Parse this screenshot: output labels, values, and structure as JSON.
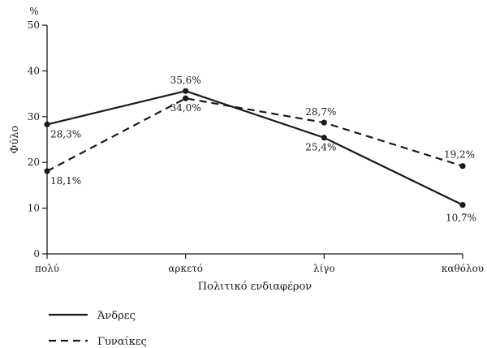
{
  "chart_data": {
    "type": "line",
    "categories": [
      "πολύ",
      "αρκετό",
      "λίγο",
      "καθόλου"
    ],
    "series": [
      {
        "name": "Άνδρες",
        "values": [
          28.3,
          35.6,
          25.4,
          10.7
        ],
        "labels": [
          "28,3%",
          "35,6%",
          "25,4%",
          "10,7%"
        ],
        "style": "solid"
      },
      {
        "name": "Γυναίκες",
        "values": [
          18.1,
          34.0,
          28.7,
          19.2
        ],
        "labels": [
          "18,1%",
          "34,0%",
          "28,7%",
          "19,2%"
        ],
        "style": "dashed"
      }
    ],
    "xlabel": "Πολιτικό ενδιαφέρον",
    "ylabel": "Φύλο",
    "yunit": "%",
    "ylim": [
      0,
      50
    ],
    "yticks": [
      0,
      10,
      20,
      30,
      40,
      50
    ],
    "grid": false,
    "legend_position": "bottom-left",
    "line_color": "#1a1a1a"
  }
}
